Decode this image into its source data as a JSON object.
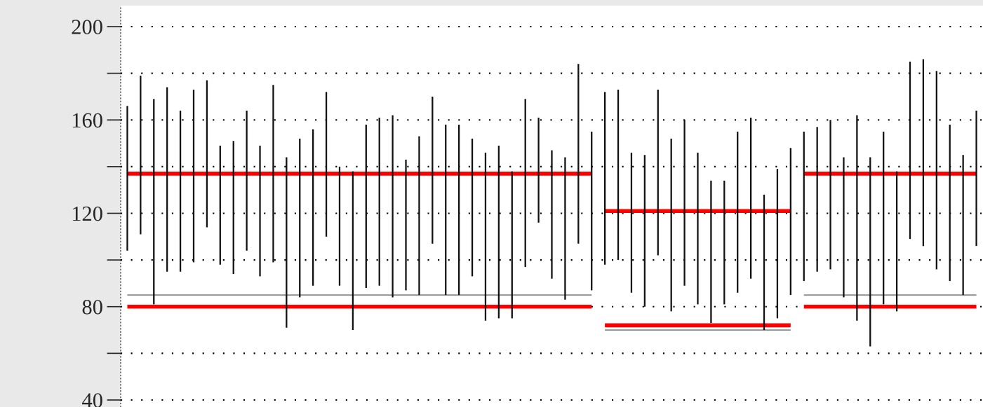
{
  "chart_data": {
    "type": "bar",
    "categories": [
      null,
      null,
      null,
      null,
      null,
      null,
      null,
      null,
      null,
      null,
      null,
      null,
      null,
      null,
      null,
      null,
      null,
      null,
      null,
      null,
      null,
      null,
      null,
      null,
      null,
      null,
      null,
      null,
      null,
      null,
      null,
      null,
      null,
      null,
      null,
      null,
      null,
      null,
      null,
      null,
      null,
      null,
      null,
      null,
      null,
      null,
      null,
      null,
      null,
      null,
      null,
      null,
      null,
      null,
      null,
      null,
      null,
      null,
      null,
      null,
      null,
      null,
      null,
      null,
      null
    ],
    "base": [
      104,
      111,
      81,
      95,
      95,
      99,
      114,
      98,
      94,
      104,
      93,
      99,
      71,
      84,
      89,
      110,
      89,
      70,
      88,
      89,
      84,
      87,
      85,
      107,
      85,
      85,
      93,
      74,
      75,
      75,
      97,
      116,
      92,
      83,
      107,
      87,
      98,
      100,
      86,
      80,
      102,
      78,
      89,
      81,
      73,
      81,
      86,
      92,
      70,
      75,
      85,
      91,
      95,
      96,
      84,
      74,
      63,
      81,
      78,
      109,
      106,
      96,
      91,
      85,
      106
    ],
    "values": [
      62,
      68,
      88,
      79,
      69,
      74,
      63,
      51,
      57,
      60,
      56,
      76,
      73,
      68,
      67,
      62,
      51,
      68,
      70,
      72,
      78,
      56,
      68,
      63,
      73,
      73,
      59,
      72,
      74,
      63,
      72,
      45,
      55,
      61,
      77,
      68,
      74,
      73,
      60,
      65,
      71,
      74,
      71,
      65,
      61,
      53,
      69,
      69,
      58,
      64,
      63,
      64,
      62,
      64,
      60,
      88,
      81,
      74,
      60,
      76,
      80,
      85,
      67,
      60,
      58
    ],
    "color": "#111111",
    "series": [
      {
        "type": "line",
        "color": "#888888",
        "values": [
          85,
          85,
          85,
          85,
          85,
          85,
          85,
          85,
          85,
          85,
          85,
          85,
          85,
          85,
          85,
          85,
          85,
          85,
          85,
          85,
          85,
          85,
          85,
          85,
          85,
          85,
          85,
          85,
          85,
          85,
          85,
          85,
          85,
          85,
          85,
          85,
          null,
          null,
          null,
          null,
          null,
          null,
          null,
          null,
          null,
          null,
          null,
          null,
          null,
          null,
          null,
          null,
          null,
          null,
          null,
          null,
          null,
          null,
          null,
          null,
          null,
          null,
          null,
          null,
          null
        ]
      },
      {
        "type": "line",
        "color": "#888888",
        "values": [
          null,
          null,
          null,
          null,
          null,
          null,
          null,
          null,
          null,
          null,
          null,
          null,
          null,
          null,
          null,
          null,
          null,
          null,
          null,
          null,
          null,
          null,
          null,
          null,
          null,
          null,
          null,
          null,
          null,
          null,
          null,
          null,
          null,
          null,
          null,
          null,
          70,
          70,
          70,
          70,
          70,
          70,
          70,
          70,
          70,
          70,
          70,
          70,
          70,
          70,
          70,
          null,
          null,
          null,
          null,
          null,
          null,
          null,
          null,
          null,
          null,
          null,
          null,
          null,
          null
        ]
      },
      {
        "type": "line",
        "color": "#888888",
        "values": [
          null,
          null,
          null,
          null,
          null,
          null,
          null,
          null,
          null,
          null,
          null,
          null,
          null,
          null,
          null,
          null,
          null,
          null,
          null,
          null,
          null,
          null,
          null,
          null,
          null,
          null,
          null,
          null,
          null,
          null,
          null,
          null,
          null,
          null,
          null,
          null,
          null,
          null,
          null,
          null,
          null,
          null,
          null,
          null,
          null,
          null,
          null,
          null,
          null,
          null,
          null,
          85,
          85,
          85,
          85,
          85,
          85,
          85,
          85,
          85,
          85,
          85,
          85,
          85,
          85
        ]
      },
      {
        "type": "line",
        "color": "#ff0000",
        "values": [
          137,
          137,
          137,
          137,
          137,
          137,
          137,
          137,
          137,
          137,
          137,
          137,
          137,
          137,
          137,
          137,
          137,
          137,
          137,
          137,
          137,
          137,
          137,
          137,
          137,
          137,
          137,
          137,
          137,
          137,
          137,
          137,
          137,
          137,
          137,
          137,
          null,
          null,
          null,
          null,
          null,
          null,
          null,
          null,
          null,
          null,
          null,
          null,
          null,
          null,
          null,
          null,
          null,
          null,
          null,
          null,
          null,
          null,
          null,
          null,
          null,
          null,
          null,
          null,
          null
        ]
      },
      {
        "type": "line",
        "color": "#ff0000",
        "values": [
          80,
          80,
          80,
          80,
          80,
          80,
          80,
          80,
          80,
          80,
          80,
          80,
          80,
          80,
          80,
          80,
          80,
          80,
          80,
          80,
          80,
          80,
          80,
          80,
          80,
          80,
          80,
          80,
          80,
          80,
          80,
          80,
          80,
          80,
          80,
          80,
          null,
          null,
          null,
          null,
          null,
          null,
          null,
          null,
          null,
          null,
          null,
          null,
          null,
          null,
          null,
          null,
          null,
          null,
          null,
          null,
          null,
          null,
          null,
          null,
          null,
          null,
          null,
          null,
          null
        ]
      },
      {
        "type": "line",
        "color": "#ff0000",
        "values": [
          null,
          null,
          null,
          null,
          null,
          null,
          null,
          null,
          null,
          null,
          null,
          null,
          null,
          null,
          null,
          null,
          null,
          null,
          null,
          null,
          null,
          null,
          null,
          null,
          null,
          null,
          null,
          null,
          null,
          null,
          null,
          null,
          null,
          null,
          null,
          null,
          121,
          121,
          121,
          121,
          121,
          121,
          121,
          121,
          121,
          121,
          121,
          121,
          121,
          121,
          121,
          null,
          null,
          null,
          null,
          null,
          null,
          null,
          null,
          null,
          null,
          null,
          null,
          null,
          null
        ]
      },
      {
        "type": "line",
        "color": "#ff0000",
        "values": [
          null,
          null,
          null,
          null,
          null,
          null,
          null,
          null,
          null,
          null,
          null,
          null,
          null,
          null,
          null,
          null,
          null,
          null,
          null,
          null,
          null,
          null,
          null,
          null,
          null,
          null,
          null,
          null,
          null,
          null,
          null,
          null,
          null,
          null,
          null,
          null,
          72,
          72,
          72,
          72,
          72,
          72,
          72,
          72,
          72,
          72,
          72,
          72,
          72,
          72,
          72,
          null,
          null,
          null,
          null,
          null,
          null,
          null,
          null,
          null,
          null,
          null,
          null,
          null,
          null
        ]
      },
      {
        "type": "line",
        "color": "#ff0000",
        "values": [
          null,
          null,
          null,
          null,
          null,
          null,
          null,
          null,
          null,
          null,
          null,
          null,
          null,
          null,
          null,
          null,
          null,
          null,
          null,
          null,
          null,
          null,
          null,
          null,
          null,
          null,
          null,
          null,
          null,
          null,
          null,
          null,
          null,
          null,
          null,
          null,
          null,
          null,
          null,
          null,
          null,
          null,
          null,
          null,
          null,
          null,
          null,
          null,
          null,
          null,
          null,
          137,
          137,
          137,
          137,
          137,
          137,
          137,
          137,
          137,
          137,
          137,
          137,
          137,
          137
        ]
      },
      {
        "type": "line",
        "color": "#ff0000",
        "values": [
          null,
          null,
          null,
          null,
          null,
          null,
          null,
          null,
          null,
          null,
          null,
          null,
          null,
          null,
          null,
          null,
          null,
          null,
          null,
          null,
          null,
          null,
          null,
          null,
          null,
          null,
          null,
          null,
          null,
          null,
          null,
          null,
          null,
          null,
          null,
          null,
          null,
          null,
          null,
          null,
          null,
          null,
          null,
          null,
          null,
          null,
          null,
          null,
          null,
          null,
          null,
          80,
          80,
          80,
          80,
          80,
          80,
          80,
          80,
          80,
          80,
          80,
          80,
          80,
          80
        ]
      }
    ],
    "ylim": [
      37,
      209
    ],
    "yticks": [
      40,
      {
        "value": 60,
        "label": null
      },
      80,
      {
        "value": 100,
        "label": null
      },
      120,
      {
        "value": 140,
        "label": null
      },
      160,
      {
        "value": 180,
        "label": null
      },
      200
    ],
    "tick_labels": "y",
    "grid": "y"
  }
}
